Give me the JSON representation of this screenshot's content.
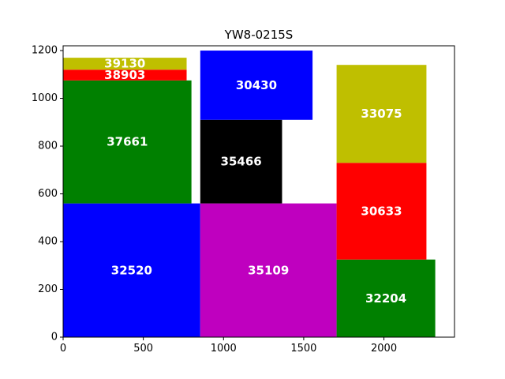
{
  "chart_data": {
    "type": "treemap",
    "title": "YW8-0215S",
    "xlim": [
      0,
      2440
    ],
    "ylim": [
      0,
      1220
    ],
    "xticks": [
      0,
      500,
      1000,
      1500,
      2000
    ],
    "yticks": [
      0,
      200,
      400,
      600,
      800,
      1000,
      1200
    ],
    "grid": false,
    "rects": [
      {
        "label": "32520",
        "x": 0,
        "y": 0,
        "w": 855,
        "h": 560,
        "color": "#0000ff"
      },
      {
        "label": "37661",
        "x": 0,
        "y": 560,
        "w": 800,
        "h": 515,
        "color": "#008000"
      },
      {
        "label": "38903",
        "x": 0,
        "y": 1075,
        "w": 770,
        "h": 45,
        "color": "#ff0000"
      },
      {
        "label": "39130",
        "x": 0,
        "y": 1120,
        "w": 770,
        "h": 50,
        "color": "#bfbf00"
      },
      {
        "label": "35109",
        "x": 855,
        "y": 0,
        "w": 850,
        "h": 560,
        "color": "#bf00bf"
      },
      {
        "label": "35466",
        "x": 855,
        "y": 560,
        "w": 510,
        "h": 350,
        "color": "#000000"
      },
      {
        "label": "30430",
        "x": 855,
        "y": 910,
        "w": 700,
        "h": 290,
        "color": "#0000ff"
      },
      {
        "label": "32204",
        "x": 1705,
        "y": 0,
        "w": 615,
        "h": 325,
        "color": "#008000"
      },
      {
        "label": "30633",
        "x": 1705,
        "y": 325,
        "w": 560,
        "h": 405,
        "color": "#ff0000"
      },
      {
        "label": "33075",
        "x": 1705,
        "y": 730,
        "w": 560,
        "h": 410,
        "color": "#bfbf00"
      }
    ]
  }
}
